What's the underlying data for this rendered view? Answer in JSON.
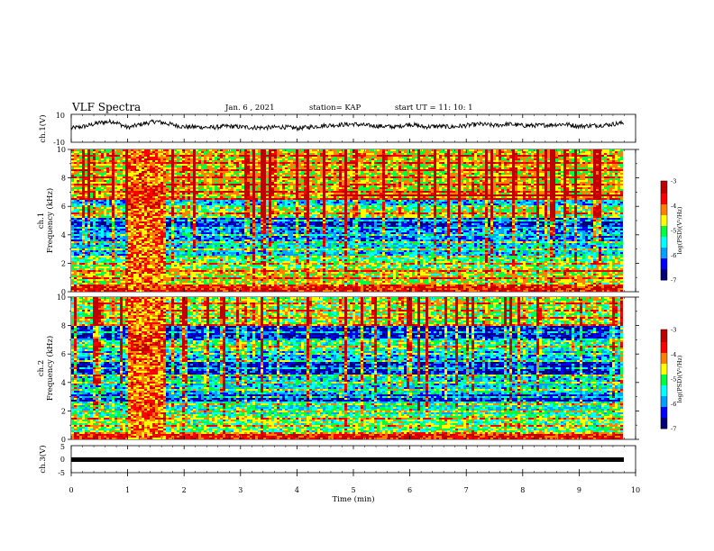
{
  "header": {
    "title": "VLF Spectra",
    "date": "Jan. 6 , 2021",
    "station": "station= KAP",
    "start": "start UT =   11: 10: 1"
  },
  "chart_data": [
    {
      "type": "line",
      "panel": "ch1-waveform",
      "ylabel": "ch.1(V)",
      "ylim": [
        -10,
        10
      ],
      "yticks": [
        "10",
        "-10"
      ],
      "xlim": [
        0,
        10
      ],
      "series": [
        {
          "x": [
            0,
            0.25,
            0.5,
            0.75,
            1.0,
            1.25,
            1.5,
            1.75,
            2.0,
            2.25,
            2.5,
            2.75,
            3.0,
            3.25,
            3.5,
            3.75,
            4.0,
            4.25,
            4.5,
            4.75,
            5.0,
            5.25,
            5.5,
            5.75,
            6.0,
            6.25,
            6.5,
            6.75,
            7.0,
            7.25,
            7.5,
            7.75,
            8.0,
            8.25,
            8.5,
            8.75,
            9.0,
            9.25,
            9.5,
            9.8
          ],
          "y": [
            0,
            1.5,
            4,
            5,
            0.5,
            3,
            5,
            3,
            1,
            1,
            0.5,
            1.5,
            1,
            0.5,
            0.5,
            1,
            0,
            1,
            2,
            2.5,
            3,
            2,
            1.5,
            1,
            3,
            1,
            1.5,
            1,
            2,
            3,
            2,
            3,
            2,
            2,
            2.5,
            3,
            1.5,
            2,
            2.5,
            4
          ]
        }
      ]
    },
    {
      "type": "heatmap",
      "panel": "ch1-spectrogram",
      "ylabel": "ch.1\nFrequency (kHz)",
      "ylim": [
        0,
        10
      ],
      "yticks": [
        "0",
        "2",
        "4",
        "6",
        "8",
        "10"
      ],
      "xlim": [
        0,
        9.8
      ],
      "colorbar": {
        "label": "log(PSD)(V²/Hz)",
        "range": [
          -7,
          -3
        ],
        "ticks": [
          "-3",
          "-4",
          "-5",
          "-6",
          "-7"
        ]
      },
      "bands_khz": [
        {
          "from": 0.0,
          "to": 0.4,
          "level": 0.85
        },
        {
          "from": 0.4,
          "to": 1.6,
          "level": 0.6
        },
        {
          "from": 1.6,
          "to": 2.4,
          "level": 0.5
        },
        {
          "from": 2.4,
          "to": 3.6,
          "level": 0.35
        },
        {
          "from": 3.6,
          "to": 4.4,
          "level": 0.25
        },
        {
          "from": 4.4,
          "to": 5.2,
          "level": 0.15
        },
        {
          "from": 5.2,
          "to": 5.9,
          "level": 0.55
        },
        {
          "from": 5.9,
          "to": 6.5,
          "level": 0.3
        },
        {
          "from": 6.5,
          "to": 7.0,
          "level": 0.65
        },
        {
          "from": 7.0,
          "to": 10.0,
          "level": 0.62
        }
      ],
      "burst_min": [
        1.0,
        1.65
      ],
      "steady_line_khz": 6.8,
      "steady_line_from_min": 4.6
    },
    {
      "type": "heatmap",
      "panel": "ch2-spectrogram",
      "ylabel": "ch.2\nFrequency (kHz)",
      "ylim": [
        0,
        10
      ],
      "yticks": [
        "0",
        "2",
        "4",
        "6",
        "8",
        "10"
      ],
      "xlim": [
        0,
        9.8
      ],
      "colorbar": {
        "label": "log(PSD)(V²/Hz)",
        "range": [
          -7,
          -3
        ],
        "ticks": [
          "-3",
          "-4",
          "-5",
          "-6",
          "-7"
        ]
      },
      "bands_khz": [
        {
          "from": 0.0,
          "to": 0.4,
          "level": 0.85
        },
        {
          "from": 0.4,
          "to": 1.8,
          "level": 0.5
        },
        {
          "from": 1.8,
          "to": 2.6,
          "level": 0.4
        },
        {
          "from": 2.6,
          "to": 3.2,
          "level": 0.15
        },
        {
          "from": 3.2,
          "to": 4.6,
          "level": 0.35
        },
        {
          "from": 4.6,
          "to": 5.4,
          "level": 0.12
        },
        {
          "from": 5.4,
          "to": 6.2,
          "level": 0.3
        },
        {
          "from": 6.2,
          "to": 7.0,
          "level": 0.45
        },
        {
          "from": 7.0,
          "to": 8.0,
          "level": 0.12
        },
        {
          "from": 8.0,
          "to": 10.0,
          "level": 0.55
        }
      ],
      "burst_min": [
        1.0,
        1.65
      ]
    },
    {
      "type": "line",
      "panel": "ch3-waveform",
      "ylabel": "ch.3(V)",
      "ylim": [
        -5,
        5
      ],
      "yticks": [
        "5",
        "0",
        "-5"
      ],
      "xlim": [
        0,
        10
      ],
      "xlabel": "Time  (min)",
      "xticks": [
        "0",
        "1",
        "2",
        "3",
        "4",
        "5",
        "6",
        "7",
        "8",
        "9",
        "10"
      ],
      "series": [
        {
          "x": [
            0,
            9.8
          ],
          "y": [
            0,
            0
          ]
        }
      ]
    }
  ],
  "colors": {
    "scale": [
      "#00007a",
      "#0000ff",
      "#00a0ff",
      "#00ffff",
      "#00ff40",
      "#ffff00",
      "#ff8000",
      "#ff0000",
      "#c00000"
    ],
    "trace": "#000000"
  }
}
